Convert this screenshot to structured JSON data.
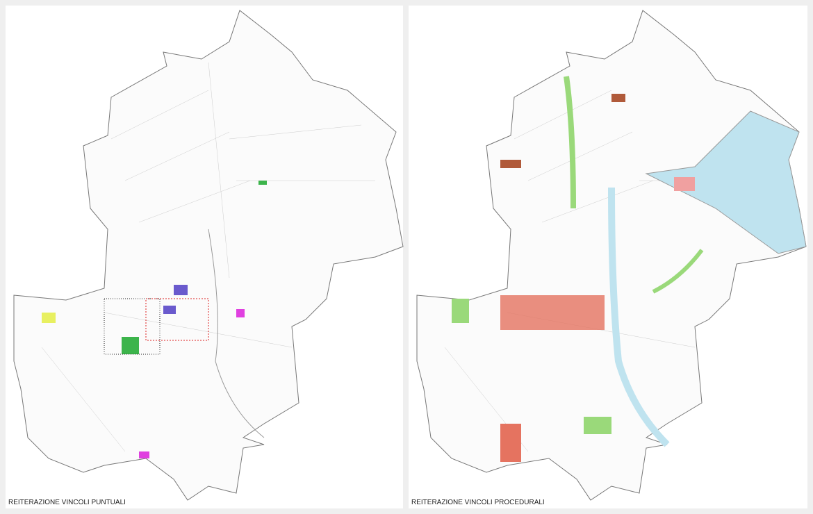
{
  "panels": [
    {
      "caption": "REITERAZIONE VINCOLI PUNTUALI"
    },
    {
      "caption": "REITERAZIONE VINCOLI PROCEDURALI"
    }
  ]
}
